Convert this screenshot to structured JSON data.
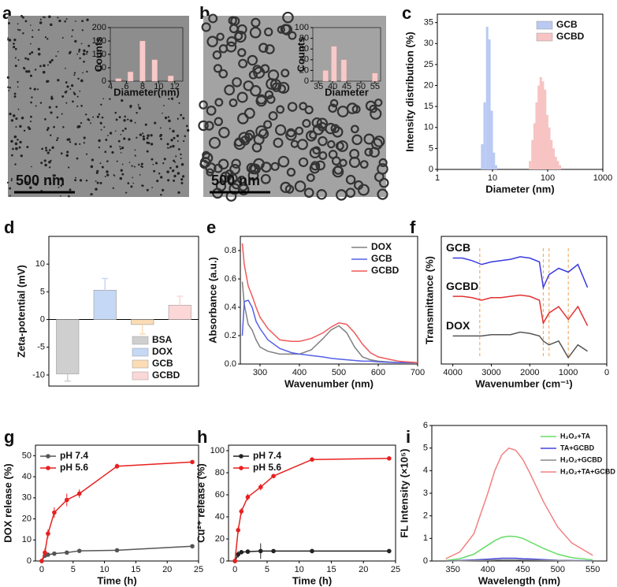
{
  "chart_data": [
    {
      "type": "bar",
      "label": "a",
      "scale_bar": "500 nm",
      "x_label": "Diameter(nm)",
      "y_label": "Counts",
      "xlim": [
        4,
        13
      ],
      "xticks": [
        4,
        6,
        8,
        10,
        12
      ],
      "ylim": [
        0,
        200
      ],
      "yticks": [
        0,
        50,
        100,
        150,
        200
      ],
      "series": [
        {
          "color": "#f7c9c9",
          "x": [
            5,
            6.5,
            8,
            9.5,
            11.5
          ],
          "values": [
            10,
            35,
            150,
            80,
            20
          ]
        }
      ]
    },
    {
      "type": "bar",
      "label": "b",
      "scale_bar": "500 nm",
      "x_label": "Diameter",
      "y_label": "Counts",
      "xlim": [
        33,
        57
      ],
      "xticks": [
        35,
        40,
        45,
        50,
        55
      ],
      "ylim": [
        0,
        100
      ],
      "yticks": [
        0,
        20,
        40,
        60,
        80,
        100
      ],
      "series": [
        {
          "color": "#f7c9c9",
          "x": [
            37.5,
            40.5,
            44,
            55
          ],
          "values": [
            20,
            65,
            40,
            15
          ]
        }
      ]
    },
    {
      "type": "bar",
      "label": "c",
      "x_label": "Diameter (nm)",
      "y_label": "Intensity distribution (%)",
      "xlog": true,
      "xlim": [
        1,
        1000
      ],
      "xticks": [
        1,
        10,
        100,
        1000
      ],
      "ylim": [
        0,
        37
      ],
      "yticks": [
        0,
        5,
        10,
        15,
        20,
        25,
        30,
        35
      ],
      "legend": "upper right",
      "series": [
        {
          "name": "GCB",
          "color": "#b9c9f2",
          "x": [
            6.5,
            7.2,
            8,
            8.8,
            9.7,
            10.6,
            11.6
          ],
          "values": [
            6,
            16,
            34,
            31,
            14,
            4,
            1
          ]
        },
        {
          "name": "GCBD",
          "color": "#f7c3c3",
          "x": [
            48,
            53,
            58,
            63,
            69,
            75,
            82,
            90,
            98,
            107,
            117,
            128,
            140,
            153,
            167
          ],
          "values": [
            2,
            7,
            11,
            16,
            20,
            22,
            21,
            19,
            13,
            10,
            7,
            5,
            3,
            2,
            1
          ]
        }
      ]
    },
    {
      "type": "bar",
      "label": "d",
      "y_label": "Zeta-potential (mV)",
      "categories": [
        "BSA",
        "DOX",
        "GCB",
        "GCBD"
      ],
      "values": [
        -9.8,
        5.3,
        -0.9,
        2.6
      ],
      "errors": [
        1.3,
        2.1,
        1.7,
        1.6
      ],
      "colors": [
        "#cfcfcf",
        "#c5d8f5",
        "#fbdcb5",
        "#fcd7d7"
      ],
      "ylim": [
        -12,
        15
      ],
      "yticks": [
        -10,
        -5,
        0,
        5,
        10
      ],
      "legend": "lower right"
    },
    {
      "type": "line",
      "label": "e",
      "x_label": "Wavenumber (nm)",
      "y_label": "Absorbance (a.u.)",
      "x": [
        255,
        260,
        270,
        280,
        290,
        300,
        320,
        350,
        380,
        400,
        430,
        460,
        480,
        500,
        520,
        540,
        560,
        580,
        600,
        650,
        700
      ],
      "xlim": [
        250,
        700
      ],
      "xticks": [
        300,
        400,
        500,
        600,
        700
      ],
      "ylim": [
        0,
        0.9
      ],
      "yticks": [
        {
          "value": 0,
          "label": "0.0"
        },
        0.2,
        0.4,
        0.6,
        0.8
      ],
      "legend": "upper right",
      "series": [
        {
          "name": "DOX",
          "color": "#808080",
          "values": [
            0.58,
            0.42,
            0.28,
            0.24,
            0.17,
            0.12,
            0.09,
            0.07,
            0.07,
            0.07,
            0.1,
            0.18,
            0.24,
            0.27,
            0.22,
            0.12,
            0.05,
            0.03,
            0.02,
            0.01,
            0.01
          ]
        },
        {
          "name": "GCB",
          "color": "#5560e8",
          "values": [
            0.2,
            0.44,
            0.45,
            0.4,
            0.3,
            0.25,
            0.17,
            0.11,
            0.08,
            0.07,
            0.06,
            0.05,
            0.04,
            0.035,
            0.03,
            0.025,
            0.02,
            0.02,
            0.015,
            0.01,
            0.01
          ]
        },
        {
          "name": "GCBD",
          "color": "#f05a5a",
          "values": [
            0.85,
            0.7,
            0.55,
            0.48,
            0.4,
            0.33,
            0.25,
            0.17,
            0.16,
            0.16,
            0.18,
            0.22,
            0.26,
            0.29,
            0.28,
            0.22,
            0.14,
            0.08,
            0.05,
            0.02,
            0.01
          ]
        }
      ]
    },
    {
      "type": "line",
      "label": "f",
      "x_label": "Wavenumber (cm⁻¹)",
      "y_label": "Transmittance (%)",
      "series_labels": true,
      "x": [
        4000,
        3750,
        3500,
        3250,
        3000,
        2750,
        2500,
        2250,
        2000,
        1750,
        1650,
        1500,
        1250,
        1000,
        750,
        500
      ],
      "xlim": [
        4300,
        0
      ],
      "xticks": [
        4000,
        3000,
        2000,
        1000,
        0
      ],
      "ylim": [
        0,
        1
      ],
      "ref_lines": [
        3300,
        1650,
        1500,
        1000
      ],
      "ref_color": "#f0a050",
      "series": [
        {
          "name": "GCB",
          "color": "#3a3adf",
          "values": [
            0.83,
            0.83,
            0.81,
            0.78,
            0.8,
            0.81,
            0.82,
            0.84,
            0.83,
            0.8,
            0.6,
            0.7,
            0.75,
            0.72,
            0.78,
            0.6
          ]
        },
        {
          "name": "GCBD",
          "color": "#e23030",
          "values": [
            0.53,
            0.53,
            0.52,
            0.5,
            0.52,
            0.52,
            0.53,
            0.54,
            0.53,
            0.5,
            0.32,
            0.4,
            0.45,
            0.35,
            0.45,
            0.3
          ]
        },
        {
          "name": "DOX",
          "color": "#555555",
          "values": [
            0.22,
            0.22,
            0.22,
            0.22,
            0.23,
            0.23,
            0.23,
            0.25,
            0.24,
            0.22,
            0.18,
            0.15,
            0.18,
            0.05,
            0.15,
            0.1
          ]
        }
      ]
    },
    {
      "type": "line",
      "label": "g",
      "x_label": "Time (h)",
      "y_label": "DOX release (%)",
      "markers": true,
      "x": [
        0,
        0.5,
        1,
        2,
        4,
        6,
        12,
        24
      ],
      "xlim": [
        -1,
        25
      ],
      "xticks": [
        0,
        5,
        10,
        15,
        20,
        25
      ],
      "ylim": [
        0,
        55
      ],
      "yticks": [
        0,
        10,
        20,
        30,
        40,
        50
      ],
      "legend": "upper left",
      "series": [
        {
          "name": "pH 7.4",
          "color": "#555555",
          "values": [
            0,
            2.5,
            3,
            3.5,
            4,
            4.8,
            5.1,
            7
          ],
          "errors": [
            0,
            0.5,
            0.8,
            0.8,
            0.8,
            0.8,
            0.4,
            0.8
          ]
        },
        {
          "name": "pH 5.6",
          "color": "#e82020",
          "values": [
            0,
            4,
            13,
            23,
            29,
            32,
            45,
            47
          ],
          "errors": [
            0,
            2,
            2,
            2.5,
            3,
            2,
            1.2,
            1
          ]
        }
      ]
    },
    {
      "type": "line",
      "label": "h",
      "x_label": "Time (h)",
      "y_label": "Cu²⁺ release (%)",
      "markers": true,
      "x": [
        0,
        0.5,
        1,
        2,
        4,
        6,
        12,
        24
      ],
      "xlim": [
        -1,
        25
      ],
      "xticks": [
        0,
        5,
        10,
        15,
        20,
        25
      ],
      "ylim": [
        0,
        105
      ],
      "yticks": [
        0,
        20,
        40,
        60,
        80,
        100
      ],
      "legend": "upper left",
      "series": [
        {
          "name": "pH 7.4",
          "color": "#222222",
          "values": [
            0,
            6,
            8,
            8.5,
            9,
            9,
            9,
            9
          ],
          "errors": [
            0,
            3,
            2,
            2,
            7,
            1,
            2,
            2
          ]
        },
        {
          "name": "pH 5.6",
          "color": "#e82020",
          "values": [
            0,
            28,
            45,
            58,
            67,
            77,
            92,
            93
          ],
          "errors": [
            0,
            3,
            3,
            3,
            3,
            1,
            1,
            1.5
          ]
        }
      ]
    },
    {
      "type": "line",
      "label": "i",
      "x_label": "Wavelength (nm)",
      "y_label": "FL Intensity (×10⁵)",
      "x": [
        340,
        360,
        380,
        400,
        410,
        420,
        430,
        440,
        450,
        460,
        480,
        500,
        520,
        550
      ],
      "xlim": [
        320,
        570
      ],
      "xticks": [
        350,
        400,
        450,
        500,
        550
      ],
      "ylim": [
        0,
        6
      ],
      "yticks": [
        0,
        1,
        2,
        3,
        4,
        5,
        6
      ],
      "legend": "upper right",
      "series": [
        {
          "name": "H₂O₂+TA",
          "color": "#66dd66",
          "values": [
            0.02,
            0.1,
            0.3,
            0.7,
            0.9,
            1.05,
            1.1,
            1.08,
            1.0,
            0.85,
            0.55,
            0.3,
            0.15,
            0.05
          ]
        },
        {
          "name": "TA+GCBD",
          "color": "#4444dd",
          "values": [
            0,
            0.02,
            0.05,
            0.08,
            0.1,
            0.12,
            0.12,
            0.12,
            0.1,
            0.09,
            0.06,
            0.03,
            0.02,
            0.01
          ]
        },
        {
          "name": "H₂O₂+GCBD",
          "color": "#888888",
          "values": [
            0,
            0.01,
            0.02,
            0.03,
            0.04,
            0.05,
            0.05,
            0.05,
            0.04,
            0.04,
            0.03,
            0.02,
            0.01,
            0
          ]
        },
        {
          "name": "H₂O₂+TA+GCBD",
          "color": "#f28080",
          "values": [
            0.1,
            0.4,
            1.2,
            3.0,
            4.0,
            4.7,
            5.0,
            4.9,
            4.5,
            3.9,
            2.6,
            1.5,
            0.8,
            0.25
          ]
        }
      ]
    }
  ]
}
